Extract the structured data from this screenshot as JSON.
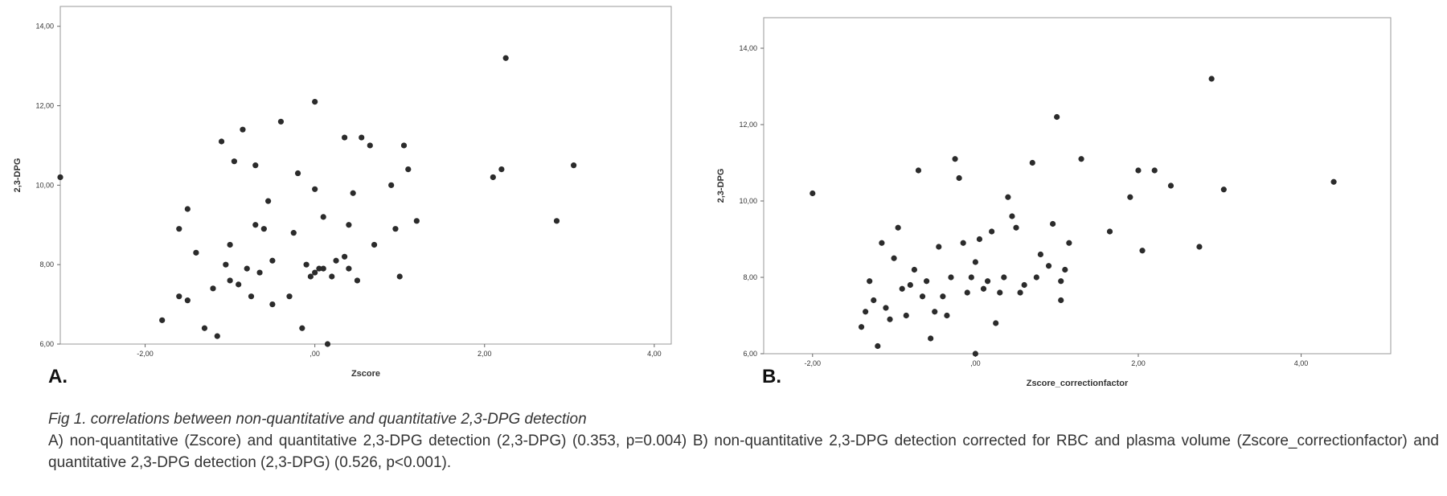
{
  "chart_data": [
    {
      "type": "scatter",
      "panel_label": "A.",
      "xlabel": "Zscore",
      "ylabel": "2,3-DPG",
      "xlim": [
        -3.0,
        4.2
      ],
      "ylim": [
        6.0,
        14.5
      ],
      "xticks": [
        -2.0,
        0.0,
        2.0,
        4.0
      ],
      "xtick_labels": [
        "-2,00",
        ",00",
        "2,00",
        "4,00"
      ],
      "yticks": [
        6.0,
        8.0,
        10.0,
        12.0,
        14.0
      ],
      "ytick_labels": [
        "6,00",
        "8,00",
        "10,00",
        "12,00",
        "14,00"
      ],
      "points": [
        [
          -3.0,
          10.2
        ],
        [
          -1.8,
          6.6
        ],
        [
          -1.6,
          8.9
        ],
        [
          -1.5,
          9.4
        ],
        [
          -1.6,
          7.2
        ],
        [
          -1.5,
          7.1
        ],
        [
          -1.4,
          8.3
        ],
        [
          -1.3,
          6.4
        ],
        [
          -1.2,
          7.4
        ],
        [
          -1.15,
          6.2
        ],
        [
          -1.1,
          11.1
        ],
        [
          -1.05,
          8.0
        ],
        [
          -1.0,
          8.5
        ],
        [
          -1.0,
          7.6
        ],
        [
          -0.95,
          10.6
        ],
        [
          -0.9,
          7.5
        ],
        [
          -0.85,
          11.4
        ],
        [
          -0.8,
          7.9
        ],
        [
          -0.75,
          7.2
        ],
        [
          -0.7,
          10.5
        ],
        [
          -0.7,
          9.0
        ],
        [
          -0.65,
          7.8
        ],
        [
          -0.6,
          8.9
        ],
        [
          -0.55,
          9.6
        ],
        [
          -0.5,
          8.1
        ],
        [
          -0.5,
          7.0
        ],
        [
          -0.4,
          11.6
        ],
        [
          -0.3,
          7.2
        ],
        [
          -0.25,
          8.8
        ],
        [
          -0.2,
          10.3
        ],
        [
          -0.15,
          6.4
        ],
        [
          -0.1,
          8.0
        ],
        [
          -0.05,
          7.7
        ],
        [
          0.0,
          12.1
        ],
        [
          0.0,
          9.9
        ],
        [
          0.0,
          7.8
        ],
        [
          0.05,
          7.9
        ],
        [
          0.1,
          7.9
        ],
        [
          0.1,
          9.2
        ],
        [
          0.15,
          6.0
        ],
        [
          0.2,
          7.7
        ],
        [
          0.25,
          8.1
        ],
        [
          0.35,
          11.2
        ],
        [
          0.35,
          8.2
        ],
        [
          0.4,
          9.0
        ],
        [
          0.4,
          7.9
        ],
        [
          0.45,
          9.8
        ],
        [
          0.5,
          7.6
        ],
        [
          0.55,
          11.2
        ],
        [
          0.65,
          11.0
        ],
        [
          0.7,
          8.5
        ],
        [
          0.9,
          10.0
        ],
        [
          0.95,
          8.9
        ],
        [
          1.0,
          7.7
        ],
        [
          1.05,
          11.0
        ],
        [
          1.1,
          10.4
        ],
        [
          1.2,
          9.1
        ],
        [
          2.1,
          10.2
        ],
        [
          2.2,
          10.4
        ],
        [
          2.25,
          13.2
        ],
        [
          2.85,
          9.1
        ],
        [
          3.05,
          10.5
        ]
      ]
    },
    {
      "type": "scatter",
      "panel_label": "B.",
      "xlabel": "Zscore_correctionfactor",
      "ylabel": "2,3-DPG",
      "xlim": [
        -2.6,
        5.1
      ],
      "ylim": [
        6.0,
        14.8
      ],
      "xticks": [
        -2.0,
        0.0,
        2.0,
        4.0
      ],
      "xtick_labels": [
        "-2,00",
        ",00",
        "2,00",
        "4,00"
      ],
      "yticks": [
        6.0,
        8.0,
        10.0,
        12.0,
        14.0
      ],
      "ytick_labels": [
        "6,00",
        "8,00",
        "10,00",
        "12,00",
        "14,00"
      ],
      "points": [
        [
          -2.0,
          10.2
        ],
        [
          -1.4,
          6.7
        ],
        [
          -1.35,
          7.1
        ],
        [
          -1.3,
          7.9
        ],
        [
          -1.25,
          7.4
        ],
        [
          -1.2,
          6.2
        ],
        [
          -1.15,
          8.9
        ],
        [
          -1.1,
          7.2
        ],
        [
          -1.05,
          6.9
        ],
        [
          -1.0,
          8.5
        ],
        [
          -0.95,
          9.3
        ],
        [
          -0.9,
          7.7
        ],
        [
          -0.85,
          7.0
        ],
        [
          -0.8,
          7.8
        ],
        [
          -0.75,
          8.2
        ],
        [
          -0.7,
          10.8
        ],
        [
          -0.65,
          7.5
        ],
        [
          -0.6,
          7.9
        ],
        [
          -0.55,
          6.4
        ],
        [
          -0.5,
          7.1
        ],
        [
          -0.45,
          8.8
        ],
        [
          -0.4,
          7.5
        ],
        [
          -0.35,
          7.0
        ],
        [
          -0.3,
          8.0
        ],
        [
          -0.25,
          11.1
        ],
        [
          -0.2,
          10.6
        ],
        [
          -0.15,
          8.9
        ],
        [
          -0.1,
          7.6
        ],
        [
          -0.05,
          8.0
        ],
        [
          0.0,
          6.0
        ],
        [
          0.0,
          8.4
        ],
        [
          0.05,
          9.0
        ],
        [
          0.1,
          7.7
        ],
        [
          0.15,
          7.9
        ],
        [
          0.2,
          9.2
        ],
        [
          0.25,
          6.8
        ],
        [
          0.3,
          7.6
        ],
        [
          0.35,
          8.0
        ],
        [
          0.4,
          10.1
        ],
        [
          0.45,
          9.6
        ],
        [
          0.5,
          9.3
        ],
        [
          0.55,
          7.6
        ],
        [
          0.6,
          7.8
        ],
        [
          0.7,
          11.0
        ],
        [
          0.75,
          8.0
        ],
        [
          0.8,
          8.6
        ],
        [
          0.9,
          8.3
        ],
        [
          0.95,
          9.4
        ],
        [
          1.0,
          12.2
        ],
        [
          1.05,
          7.4
        ],
        [
          1.05,
          7.9
        ],
        [
          1.1,
          8.2
        ],
        [
          1.15,
          8.9
        ],
        [
          1.3,
          11.1
        ],
        [
          1.65,
          9.2
        ],
        [
          1.9,
          10.1
        ],
        [
          2.0,
          10.8
        ],
        [
          2.05,
          8.7
        ],
        [
          2.2,
          10.8
        ],
        [
          2.4,
          10.4
        ],
        [
          2.75,
          8.8
        ],
        [
          2.9,
          13.2
        ],
        [
          3.05,
          10.3
        ],
        [
          4.4,
          10.5
        ]
      ]
    }
  ],
  "caption": {
    "title": "Fig 1. correlations between non-quantitative and quantitative 2,3-DPG detection",
    "body": "A) non-quantitative (Zscore) and quantitative 2,3-DPG detection (2,3-DPG) (0.353, p=0.004) B) non-quantitative 2,3-DPG detection corrected for RBC and plasma volume (Zscore_correctionfactor) and quantitative 2,3-DPG detection (2,3-DPG) (0.526, p<0.001)."
  }
}
